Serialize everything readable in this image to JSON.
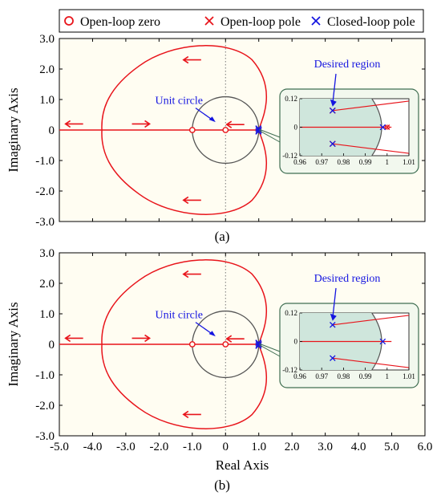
{
  "legend": {
    "items": [
      {
        "marker": "circle",
        "label": "Open-loop zero",
        "color": "#e8141b"
      },
      {
        "marker": "cross",
        "label": "Open-loop pole",
        "color": "#e8141b"
      },
      {
        "marker": "cross",
        "label": "Closed-loop pole",
        "color": "#1515e0"
      }
    ]
  },
  "colors": {
    "locus": "#e8141b",
    "unit_circle": "#555555",
    "closed_loop": "#1515e0",
    "annotation": "#1515e0",
    "axes_bg": "#fffdf2",
    "inset_bg": "#f2f8ee",
    "inset_border": "#3f6e52",
    "region_fill": "#cfe6dc"
  },
  "chart_data": [
    {
      "type": "line",
      "caption": "(a)",
      "xlabel": "",
      "ylabel": "Imaginary Axis",
      "xlim": [
        -5,
        6
      ],
      "ylim": [
        -3,
        3
      ],
      "yticks": [
        "3.0",
        "2.0",
        "1.0",
        "0",
        "-1.0",
        "-2.0",
        "-3.0"
      ],
      "xticks": [],
      "grid": false,
      "open_loop_zeros": [
        [
          -1,
          0
        ],
        [
          0,
          0
        ]
      ],
      "open_loop_poles": [
        [
          1,
          0
        ]
      ],
      "closed_loop_poles": [
        [
          0.975,
          0.07
        ],
        [
          0.975,
          -0.07
        ],
        [
          0.998,
          0
        ]
      ],
      "annotations": {
        "unit_circle": "Unit circle",
        "desired_region": "Desired region"
      },
      "inset": {
        "xlim": [
          0.96,
          1.01
        ],
        "ylim": [
          -0.12,
          0.12
        ],
        "xticks": [
          "0.96",
          "0.97",
          "0.98",
          "0.99",
          "1",
          "1.01"
        ],
        "yticks": [
          "0.12",
          "0",
          "-0.12"
        ],
        "closed_loop_poles": [
          [
            0.975,
            0.07
          ],
          [
            0.975,
            -0.07
          ],
          [
            0.998,
            0
          ]
        ]
      }
    },
    {
      "type": "line",
      "caption": "(b)",
      "xlabel": "Real Axis",
      "ylabel": "Imaginary Axis",
      "xlim": [
        -5,
        6
      ],
      "ylim": [
        -3,
        3
      ],
      "yticks": [
        "3.0",
        "2.0",
        "1.0",
        "0",
        "-1.0",
        "-2.0",
        "-3.0"
      ],
      "xticks": [
        "-5.0",
        "-4.0",
        "-3.0",
        "-2.0",
        "-1.0",
        "0",
        "1.0",
        "2.0",
        "3.0",
        "4.0",
        "5.0",
        "6.0"
      ],
      "grid": false,
      "open_loop_zeros": [
        [
          -1,
          0
        ],
        [
          0,
          0
        ]
      ],
      "open_loop_poles": [
        [
          1,
          0
        ]
      ],
      "closed_loop_poles": [
        [
          0.975,
          0.07
        ],
        [
          0.975,
          -0.07
        ],
        [
          0.998,
          0
        ]
      ],
      "annotations": {
        "unit_circle": "Unit circle",
        "desired_region": "Desired region"
      },
      "inset": {
        "xlim": [
          0.96,
          1.01
        ],
        "ylim": [
          -0.12,
          0.12
        ],
        "xticks": [
          "0.96",
          "0.97",
          "0.98",
          "0.99",
          "1",
          "1.01"
        ],
        "yticks": [
          "0.12",
          "0",
          "-0.12"
        ],
        "closed_loop_poles": [
          [
            0.975,
            0.07
          ],
          [
            0.975,
            -0.07
          ],
          [
            0.998,
            0
          ]
        ]
      }
    }
  ]
}
